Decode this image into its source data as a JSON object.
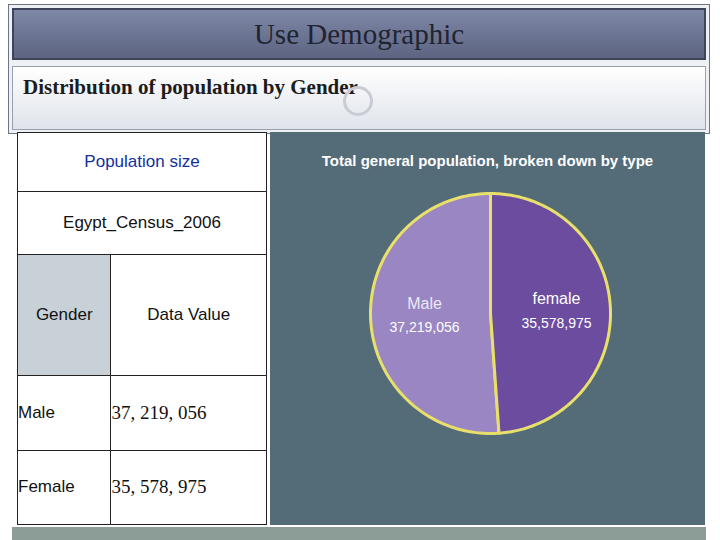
{
  "header": {
    "title": "Use Demographic",
    "subtitle": "Distribution of population by Gender"
  },
  "table": {
    "title": "Population size",
    "caption": "Egypt_Census_2006",
    "columns": [
      "Gender",
      "Data Value"
    ],
    "rows": [
      [
        "Male",
        "37, 219, 056"
      ],
      [
        "Female",
        "35, 578, 975"
      ]
    ]
  },
  "chart_data": {
    "type": "pie",
    "title": "Total general population, broken down by type",
    "categories": [
      "Male",
      "female"
    ],
    "values": [
      37219056,
      35578975
    ],
    "value_labels": [
      "37,219,056",
      "35,578,975"
    ],
    "colors": [
      "#9a86c2",
      "#6b4c9f"
    ],
    "data_labels": true
  }
}
